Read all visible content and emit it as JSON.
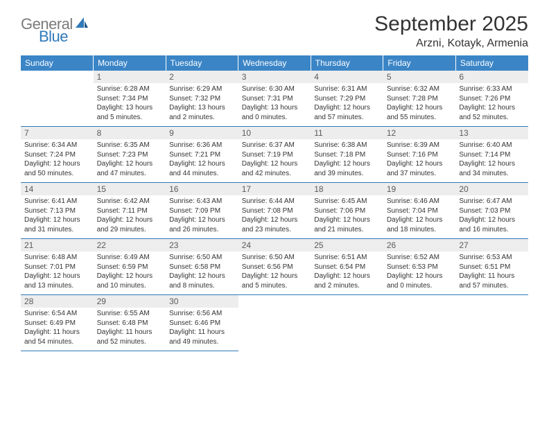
{
  "logo": {
    "word1": "General",
    "word2": "Blue",
    "word1_color": "#7a7a7a",
    "word2_color": "#2f79b9"
  },
  "title": "September 2025",
  "location": "Arzni, Kotayk, Armenia",
  "header_bg": "#3b85c6",
  "daynum_bg": "#ededed",
  "row_border": "#2f79b9",
  "weekdays": [
    "Sunday",
    "Monday",
    "Tuesday",
    "Wednesday",
    "Thursday",
    "Friday",
    "Saturday"
  ],
  "weeks": [
    [
      null,
      {
        "n": "1",
        "sr": "6:28 AM",
        "ss": "7:34 PM",
        "dl": "13 hours and 5 minutes."
      },
      {
        "n": "2",
        "sr": "6:29 AM",
        "ss": "7:32 PM",
        "dl": "13 hours and 2 minutes."
      },
      {
        "n": "3",
        "sr": "6:30 AM",
        "ss": "7:31 PM",
        "dl": "13 hours and 0 minutes."
      },
      {
        "n": "4",
        "sr": "6:31 AM",
        "ss": "7:29 PM",
        "dl": "12 hours and 57 minutes."
      },
      {
        "n": "5",
        "sr": "6:32 AM",
        "ss": "7:28 PM",
        "dl": "12 hours and 55 minutes."
      },
      {
        "n": "6",
        "sr": "6:33 AM",
        "ss": "7:26 PM",
        "dl": "12 hours and 52 minutes."
      }
    ],
    [
      {
        "n": "7",
        "sr": "6:34 AM",
        "ss": "7:24 PM",
        "dl": "12 hours and 50 minutes."
      },
      {
        "n": "8",
        "sr": "6:35 AM",
        "ss": "7:23 PM",
        "dl": "12 hours and 47 minutes."
      },
      {
        "n": "9",
        "sr": "6:36 AM",
        "ss": "7:21 PM",
        "dl": "12 hours and 44 minutes."
      },
      {
        "n": "10",
        "sr": "6:37 AM",
        "ss": "7:19 PM",
        "dl": "12 hours and 42 minutes."
      },
      {
        "n": "11",
        "sr": "6:38 AM",
        "ss": "7:18 PM",
        "dl": "12 hours and 39 minutes."
      },
      {
        "n": "12",
        "sr": "6:39 AM",
        "ss": "7:16 PM",
        "dl": "12 hours and 37 minutes."
      },
      {
        "n": "13",
        "sr": "6:40 AM",
        "ss": "7:14 PM",
        "dl": "12 hours and 34 minutes."
      }
    ],
    [
      {
        "n": "14",
        "sr": "6:41 AM",
        "ss": "7:13 PM",
        "dl": "12 hours and 31 minutes."
      },
      {
        "n": "15",
        "sr": "6:42 AM",
        "ss": "7:11 PM",
        "dl": "12 hours and 29 minutes."
      },
      {
        "n": "16",
        "sr": "6:43 AM",
        "ss": "7:09 PM",
        "dl": "12 hours and 26 minutes."
      },
      {
        "n": "17",
        "sr": "6:44 AM",
        "ss": "7:08 PM",
        "dl": "12 hours and 23 minutes."
      },
      {
        "n": "18",
        "sr": "6:45 AM",
        "ss": "7:06 PM",
        "dl": "12 hours and 21 minutes."
      },
      {
        "n": "19",
        "sr": "6:46 AM",
        "ss": "7:04 PM",
        "dl": "12 hours and 18 minutes."
      },
      {
        "n": "20",
        "sr": "6:47 AM",
        "ss": "7:03 PM",
        "dl": "12 hours and 16 minutes."
      }
    ],
    [
      {
        "n": "21",
        "sr": "6:48 AM",
        "ss": "7:01 PM",
        "dl": "12 hours and 13 minutes."
      },
      {
        "n": "22",
        "sr": "6:49 AM",
        "ss": "6:59 PM",
        "dl": "12 hours and 10 minutes."
      },
      {
        "n": "23",
        "sr": "6:50 AM",
        "ss": "6:58 PM",
        "dl": "12 hours and 8 minutes."
      },
      {
        "n": "24",
        "sr": "6:50 AM",
        "ss": "6:56 PM",
        "dl": "12 hours and 5 minutes."
      },
      {
        "n": "25",
        "sr": "6:51 AM",
        "ss": "6:54 PM",
        "dl": "12 hours and 2 minutes."
      },
      {
        "n": "26",
        "sr": "6:52 AM",
        "ss": "6:53 PM",
        "dl": "12 hours and 0 minutes."
      },
      {
        "n": "27",
        "sr": "6:53 AM",
        "ss": "6:51 PM",
        "dl": "11 hours and 57 minutes."
      }
    ],
    [
      {
        "n": "28",
        "sr": "6:54 AM",
        "ss": "6:49 PM",
        "dl": "11 hours and 54 minutes."
      },
      {
        "n": "29",
        "sr": "6:55 AM",
        "ss": "6:48 PM",
        "dl": "11 hours and 52 minutes."
      },
      {
        "n": "30",
        "sr": "6:56 AM",
        "ss": "6:46 PM",
        "dl": "11 hours and 49 minutes."
      },
      null,
      null,
      null,
      null
    ]
  ],
  "labels": {
    "sunrise": "Sunrise:",
    "sunset": "Sunset:",
    "daylight": "Daylight:"
  }
}
